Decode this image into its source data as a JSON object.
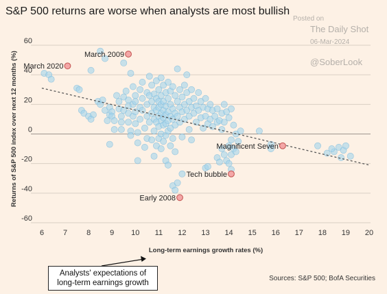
{
  "chart_data": {
    "type": "scatter",
    "title": "S&P 500 returns are worse when analysts are most bullish",
    "xlabel": "Long-term earnings growth rates (%)",
    "ylabel": "Returns of S&P 500 index over next 12 months (%)",
    "xlim": [
      6,
      20
    ],
    "ylim": [
      -60,
      60
    ],
    "xticks": [
      "6",
      "7",
      "8",
      "9",
      "10",
      "11",
      "12",
      "13",
      "14",
      "15",
      "16",
      "17",
      "18",
      "19",
      "20"
    ],
    "yticks": [
      "60",
      "40",
      "20",
      "0",
      "-20",
      "-40",
      "-60"
    ],
    "grid": "horizontal",
    "colors": {
      "background": "#fdf1e5",
      "points": "#a6d5ec",
      "points_edge": "#7fbcdc",
      "highlight": "#f4a7a7",
      "highlight_edge": "#c0504d",
      "trendline": "#555555"
    },
    "trendline": {
      "x": [
        6,
        20
      ],
      "y": [
        31,
        -21
      ]
    },
    "highlighted": [
      {
        "label": "March 2009",
        "x": 9.7,
        "y": 54
      },
      {
        "label": "March 2020",
        "x": 7.1,
        "y": 46
      },
      {
        "label": "Early 2008",
        "x": 11.9,
        "y": -43
      },
      {
        "label": "Tech bubble",
        "x": 14.1,
        "y": -27
      },
      {
        "label": "Magnificent Seven",
        "x": 16.3,
        "y": -8
      }
    ],
    "points": [
      [
        6.1,
        41
      ],
      [
        6.3,
        40
      ],
      [
        6.4,
        37
      ],
      [
        7.5,
        31
      ],
      [
        7.6,
        30
      ],
      [
        7.7,
        16
      ],
      [
        7.8,
        14
      ],
      [
        8.0,
        12
      ],
      [
        8.1,
        43
      ],
      [
        8.2,
        13
      ],
      [
        8.1,
        10
      ],
      [
        8.4,
        22
      ],
      [
        8.5,
        20
      ],
      [
        8.6,
        23
      ],
      [
        8.7,
        16
      ],
      [
        8.5,
        56
      ],
      [
        8.7,
        51
      ],
      [
        8.9,
        18
      ],
      [
        8.9,
        13
      ],
      [
        9.0,
        15
      ],
      [
        8.8,
        9
      ],
      [
        8.9,
        -7
      ],
      [
        9.0,
        12
      ],
      [
        9.1,
        9
      ],
      [
        9.1,
        3
      ],
      [
        9.2,
        26
      ],
      [
        9.3,
        22
      ],
      [
        9.3,
        17
      ],
      [
        9.4,
        12
      ],
      [
        9.4,
        8
      ],
      [
        9.4,
        3
      ],
      [
        9.5,
        25
      ],
      [
        9.5,
        16
      ],
      [
        9.5,
        48
      ],
      [
        9.6,
        29
      ],
      [
        9.7,
        23
      ],
      [
        9.7,
        19
      ],
      [
        9.7,
        14
      ],
      [
        9.7,
        8
      ],
      [
        9.8,
        2
      ],
      [
        9.8,
        -1
      ],
      [
        9.8,
        41
      ],
      [
        9.9,
        32
      ],
      [
        9.9,
        20
      ],
      [
        9.9,
        12
      ],
      [
        10.0,
        26
      ],
      [
        10.0,
        22
      ],
      [
        10.0,
        15
      ],
      [
        10.0,
        7
      ],
      [
        10.1,
        1
      ],
      [
        10.1,
        -6
      ],
      [
        10.1,
        -18
      ],
      [
        10.2,
        30
      ],
      [
        10.2,
        18
      ],
      [
        10.2,
        10
      ],
      [
        10.3,
        35
      ],
      [
        10.3,
        24
      ],
      [
        10.3,
        16
      ],
      [
        10.4,
        4
      ],
      [
        10.4,
        -9
      ],
      [
        10.5,
        28
      ],
      [
        10.5,
        20
      ],
      [
        10.5,
        12
      ],
      [
        10.5,
        -3
      ],
      [
        10.6,
        39
      ],
      [
        10.6,
        26
      ],
      [
        10.6,
        8
      ],
      [
        10.7,
        33
      ],
      [
        10.7,
        22
      ],
      [
        10.7,
        14
      ],
      [
        10.7,
        -4
      ],
      [
        10.8,
        27
      ],
      [
        10.8,
        18
      ],
      [
        10.8,
        10
      ],
      [
        10.8,
        2
      ],
      [
        10.8,
        -15
      ],
      [
        10.9,
        36
      ],
      [
        10.9,
        24
      ],
      [
        10.9,
        16
      ],
      [
        10.9,
        8
      ],
      [
        10.9,
        -8
      ],
      [
        11.0,
        30
      ],
      [
        11.0,
        22
      ],
      [
        11.0,
        18
      ],
      [
        11.0,
        12
      ],
      [
        11.0,
        5
      ],
      [
        11.0,
        -3
      ],
      [
        11.1,
        38
      ],
      [
        11.1,
        26
      ],
      [
        11.1,
        20
      ],
      [
        11.1,
        14
      ],
      [
        11.1,
        9
      ],
      [
        11.1,
        0
      ],
      [
        11.1,
        -10
      ],
      [
        11.2,
        33
      ],
      [
        11.2,
        22
      ],
      [
        11.2,
        16
      ],
      [
        11.2,
        11
      ],
      [
        11.2,
        6
      ],
      [
        11.2,
        -5
      ],
      [
        11.3,
        28
      ],
      [
        11.3,
        19
      ],
      [
        11.3,
        13
      ],
      [
        11.3,
        7
      ],
      [
        11.3,
        -1
      ],
      [
        11.3,
        -18
      ],
      [
        11.4,
        35
      ],
      [
        11.4,
        24
      ],
      [
        11.4,
        15
      ],
      [
        11.4,
        9
      ],
      [
        11.4,
        2
      ],
      [
        11.4,
        -21
      ],
      [
        11.5,
        29
      ],
      [
        11.5,
        20
      ],
      [
        11.5,
        12
      ],
      [
        11.5,
        4
      ],
      [
        11.5,
        -8
      ],
      [
        11.6,
        32
      ],
      [
        11.6,
        17
      ],
      [
        11.6,
        10
      ],
      [
        11.6,
        -3
      ],
      [
        11.6,
        -35
      ],
      [
        11.7,
        26
      ],
      [
        11.7,
        14
      ],
      [
        11.7,
        6
      ],
      [
        11.7,
        -12
      ],
      [
        11.7,
        -38
      ],
      [
        11.8,
        22
      ],
      [
        11.8,
        12
      ],
      [
        11.8,
        44
      ],
      [
        11.8,
        -33
      ],
      [
        11.9,
        30
      ],
      [
        11.9,
        18
      ],
      [
        11.9,
        8
      ],
      [
        12.0,
        25
      ],
      [
        12.0,
        15
      ],
      [
        12.0,
        -2
      ],
      [
        12.0,
        -27
      ],
      [
        12.1,
        33
      ],
      [
        12.1,
        20
      ],
      [
        12.1,
        10
      ],
      [
        12.2,
        40
      ],
      [
        12.2,
        28
      ],
      [
        12.2,
        16
      ],
      [
        12.3,
        22
      ],
      [
        12.3,
        12
      ],
      [
        12.3,
        3
      ],
      [
        12.4,
        30
      ],
      [
        12.4,
        18
      ],
      [
        12.4,
        -4
      ],
      [
        12.5,
        24
      ],
      [
        12.5,
        14
      ],
      [
        12.6,
        19
      ],
      [
        12.6,
        8
      ],
      [
        12.7,
        28
      ],
      [
        12.7,
        16
      ],
      [
        12.8,
        22
      ],
      [
        12.8,
        11
      ],
      [
        12.9,
        18
      ],
      [
        12.9,
        4
      ],
      [
        13.0,
        24
      ],
      [
        13.0,
        12
      ],
      [
        13.0,
        -23
      ],
      [
        13.1,
        17
      ],
      [
        13.1,
        7
      ],
      [
        13.1,
        -22
      ],
      [
        13.2,
        20
      ],
      [
        13.2,
        10
      ],
      [
        13.3,
        16
      ],
      [
        13.3,
        5
      ],
      [
        13.4,
        12
      ],
      [
        13.5,
        17
      ],
      [
        13.5,
        8
      ],
      [
        13.5,
        -16
      ],
      [
        13.6,
        9
      ],
      [
        13.6,
        -19
      ],
      [
        13.7,
        14
      ],
      [
        13.7,
        3
      ],
      [
        13.7,
        -10
      ],
      [
        13.8,
        20
      ],
      [
        13.8,
        8
      ],
      [
        13.8,
        -14
      ],
      [
        13.9,
        15
      ],
      [
        13.9,
        -18
      ],
      [
        14.0,
        11
      ],
      [
        14.0,
        -8
      ],
      [
        14.0,
        -20
      ],
      [
        14.1,
        17
      ],
      [
        14.1,
        -14
      ],
      [
        14.1,
        -24
      ],
      [
        14.2,
        6
      ],
      [
        14.2,
        -10
      ],
      [
        14.3,
        0
      ],
      [
        14.4,
        -5
      ],
      [
        14.5,
        2
      ],
      [
        14.3,
        -12
      ],
      [
        14.1,
        -4
      ],
      [
        15.3,
        2
      ],
      [
        15.8,
        -7
      ],
      [
        15.8,
        -10
      ],
      [
        17.8,
        -8
      ],
      [
        18.2,
        -13
      ],
      [
        18.5,
        -12
      ],
      [
        18.7,
        -9
      ],
      [
        18.9,
        -11
      ],
      [
        19.0,
        -8
      ],
      [
        19.2,
        -15
      ],
      [
        18.8,
        -16
      ],
      [
        18.4,
        -10
      ]
    ],
    "annotations": [
      "March 2009",
      "March 2020",
      "Early 2008",
      "Tech bubble",
      "Magnificent Seven"
    ]
  },
  "watermark": {
    "posted_on": "Posted on",
    "source": "The Daily Shot",
    "date": "06-Mar-2024",
    "handle": "@SoberLook"
  },
  "callout": {
    "line1": "Analysts' expectations of",
    "line2": "long-term earnings growth"
  },
  "sources": "Sources: S&P 500; BofA Securities"
}
